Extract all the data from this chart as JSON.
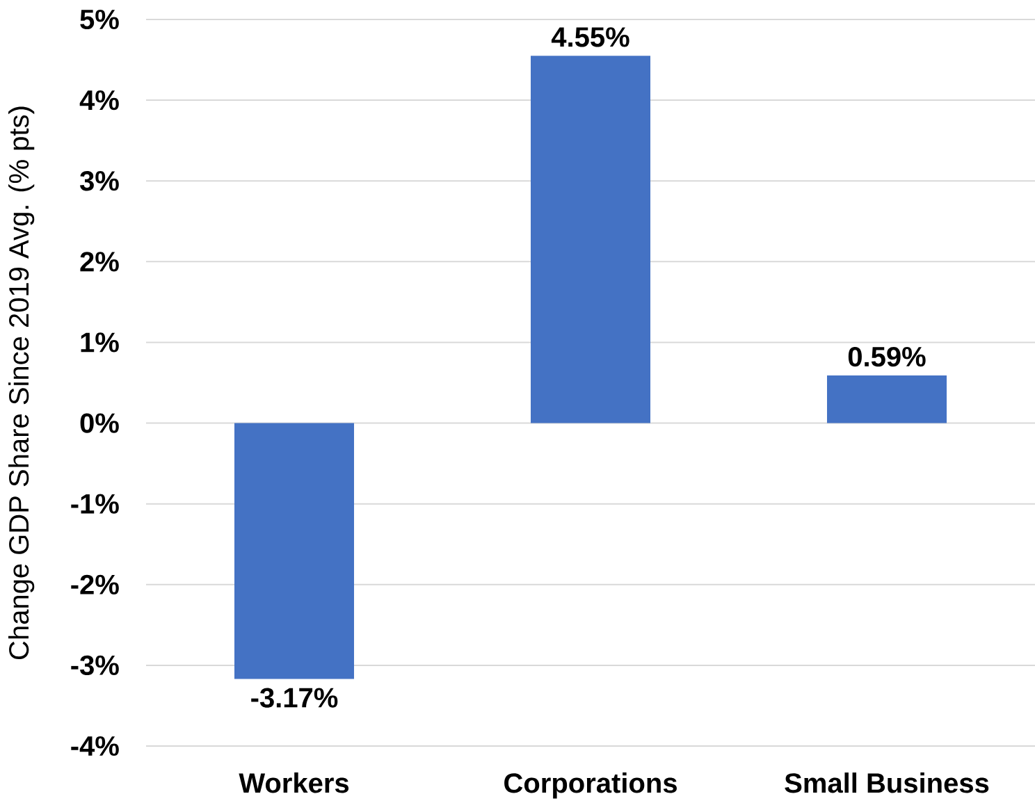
{
  "chart_data": {
    "type": "bar",
    "ylabel": "Change GDP Share Since 2019 Avg. (% pts)",
    "categories": [
      "Workers",
      "Corporations",
      "Small Business"
    ],
    "values": [
      -3.17,
      4.55,
      0.59
    ],
    "value_labels": [
      "-3.17%",
      "4.55%",
      "0.59%"
    ],
    "color": "#4472c4",
    "ylim": [
      -4,
      5
    ],
    "yticks": [
      {
        "value": -4,
        "label": "-4%"
      },
      {
        "value": -3,
        "label": "-3%"
      },
      {
        "value": -2,
        "label": "-2%"
      },
      {
        "value": -1,
        "label": "-1%"
      },
      {
        "value": 0,
        "label": "0%"
      },
      {
        "value": 1,
        "label": "1%"
      },
      {
        "value": 2,
        "label": "2%"
      },
      {
        "value": 3,
        "label": "3%"
      },
      {
        "value": 4,
        "label": "4%"
      },
      {
        "value": 5,
        "label": "5%"
      }
    ],
    "grid": "y"
  }
}
